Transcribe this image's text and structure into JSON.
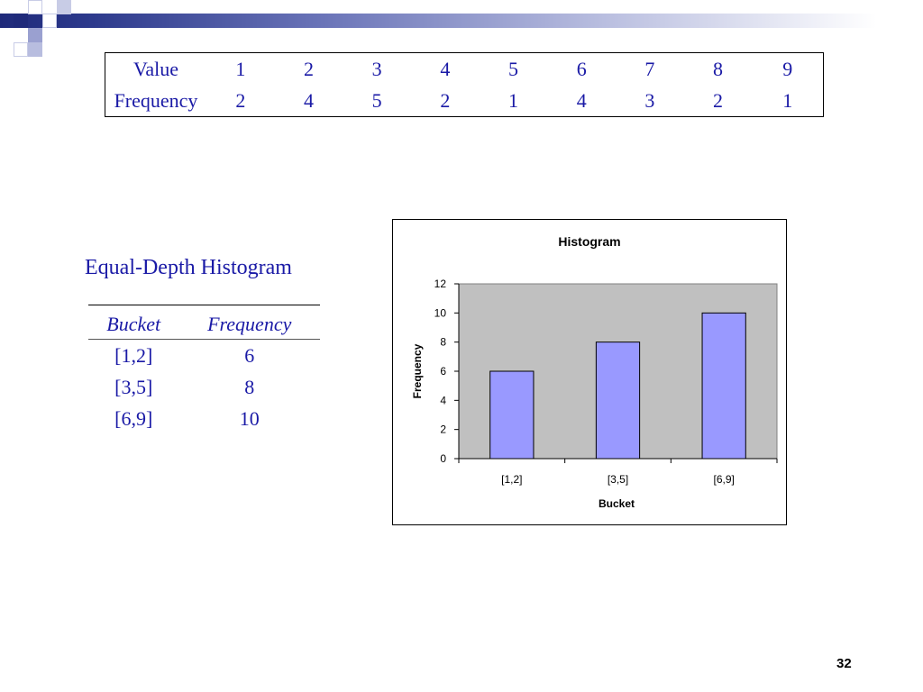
{
  "value_table": {
    "row1_label": "Value",
    "row2_label": "Frequency",
    "values": [
      "1",
      "2",
      "3",
      "4",
      "5",
      "6",
      "7",
      "8",
      "9"
    ],
    "frequencies": [
      "2",
      "4",
      "5",
      "2",
      "1",
      "4",
      "3",
      "2",
      "1"
    ]
  },
  "equal_depth": {
    "title": "Equal-Depth Histogram",
    "col_bucket": "Bucket",
    "col_frequency": "Frequency",
    "rows": [
      {
        "bucket": "[1,2]",
        "frequency": "6"
      },
      {
        "bucket": "[3,5]",
        "frequency": "8"
      },
      {
        "bucket": "[6,9]",
        "frequency": "10"
      }
    ]
  },
  "chart_data": {
    "type": "bar",
    "title": "Histogram",
    "xlabel": "Bucket",
    "ylabel": "Frequency",
    "categories": [
      "[1,2]",
      "[3,5]",
      "[6,9]"
    ],
    "values": [
      6,
      8,
      10
    ],
    "ylim": [
      0,
      12
    ],
    "yticks": [
      0,
      2,
      4,
      6,
      8,
      10,
      12
    ],
    "bar_color": "#9999ff",
    "plot_bg": "#c0c0c0",
    "grid": false
  },
  "page_number": "32",
  "colors": {
    "text_blue": "#1a1aa6",
    "deco_dark": "#1f2a7a",
    "deco_light": "#9aa0d0"
  }
}
